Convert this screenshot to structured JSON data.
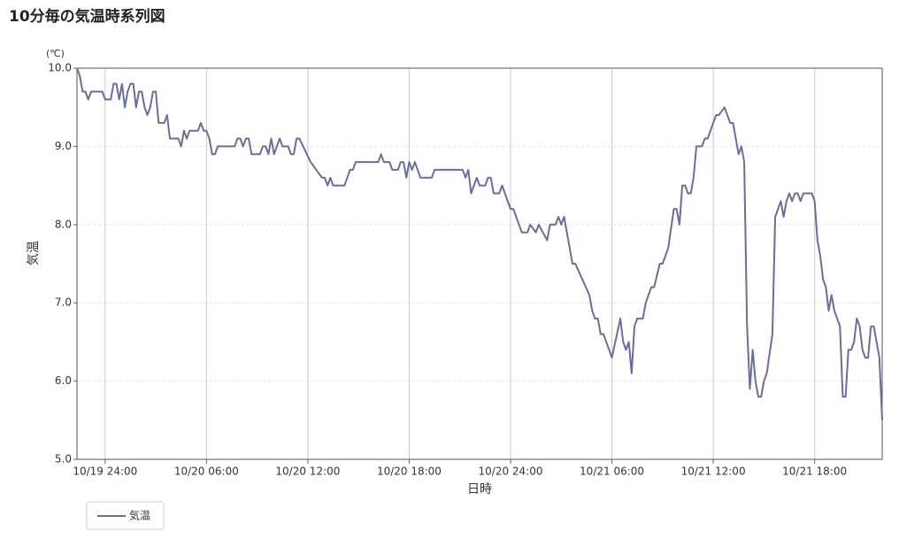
{
  "chart_data": {
    "type": "line",
    "title": "10分毎の気温時系列図",
    "y_unit": "(℃)",
    "y_label": "気温",
    "x_label": "日時",
    "xlim": [
      "10/19 22:20",
      "10/21 22:00"
    ],
    "xticks": [
      {
        "value": "10/20 00:00",
        "label": "10/19 24:00"
      },
      {
        "value": "10/20 06:00",
        "label": "10/20 06:00"
      },
      {
        "value": "10/20 12:00",
        "label": "10/20 12:00"
      },
      {
        "value": "10/20 18:00",
        "label": "10/20 18:00"
      },
      {
        "value": "10/21 00:00",
        "label": "10/20 24:00"
      },
      {
        "value": "10/21 06:00",
        "label": "10/21 06:00"
      },
      {
        "value": "10/21 12:00",
        "label": "10/21 12:00"
      },
      {
        "value": "10/21 18:00",
        "label": "10/21 18:00"
      }
    ],
    "ylim": [
      5,
      10
    ],
    "yticks": [
      {
        "value": 5,
        "label": "5.0"
      },
      {
        "value": 6,
        "label": "6.0"
      },
      {
        "value": 7,
        "label": "7.0"
      },
      {
        "value": 8,
        "label": "8.0"
      },
      {
        "value": 9,
        "label": "9.0"
      },
      {
        "value": 10,
        "label": "10.0"
      }
    ],
    "grid": true,
    "legend": "bottom-left",
    "x": [
      "10/19 22:20",
      "10/19 22:30",
      "10/19 22:40",
      "10/19 22:50",
      "10/19 23:00",
      "10/19 23:10",
      "10/19 23:50",
      "10/20 00:00",
      "10/20 00:20",
      "10/20 00:30",
      "10/20 00:40",
      "10/20 00:50",
      "10/20 01:00",
      "10/20 01:10",
      "10/20 01:20",
      "10/20 01:30",
      "10/20 01:40",
      "10/20 01:50",
      "10/20 02:00",
      "10/20 02:10",
      "10/20 02:20",
      "10/20 02:30",
      "10/20 02:40",
      "10/20 02:50",
      "10/20 03:00",
      "10/20 03:10",
      "10/20 03:30",
      "10/20 03:40",
      "10/20 03:50",
      "10/20 04:20",
      "10/20 04:30",
      "10/20 04:40",
      "10/20 04:50",
      "10/20 05:00",
      "10/20 05:30",
      "10/20 05:40",
      "10/20 05:50",
      "10/20 06:00",
      "10/20 06:10",
      "10/20 06:20",
      "10/20 06:30",
      "10/20 06:40",
      "10/20 07:40",
      "10/20 07:50",
      "10/20 08:00",
      "10/20 08:10",
      "10/20 08:20",
      "10/20 08:30",
      "10/20 08:40",
      "10/20 09:10",
      "10/20 09:20",
      "10/20 09:30",
      "10/20 09:40",
      "10/20 09:50",
      "10/20 10:00",
      "10/20 10:10",
      "10/20 10:20",
      "10/20 10:30",
      "10/20 10:50",
      "10/20 11:00",
      "10/20 11:10",
      "10/20 11:20",
      "10/20 11:30",
      "10/20 12:10",
      "10/20 12:30",
      "10/20 12:50",
      "10/20 13:00",
      "10/20 13:10",
      "10/20 13:20",
      "10/20 13:30",
      "10/20 14:10",
      "10/20 14:30",
      "10/20 14:40",
      "10/20 14:50",
      "10/20 16:10",
      "10/20 16:20",
      "10/20 16:30",
      "10/20 16:50",
      "10/20 17:00",
      "10/20 17:20",
      "10/20 17:30",
      "10/20 17:40",
      "10/20 17:50",
      "10/20 18:00",
      "10/20 18:10",
      "10/20 18:20",
      "10/20 18:30",
      "10/20 18:40",
      "10/20 19:20",
      "10/20 19:30",
      "10/20 21:10",
      "10/20 21:20",
      "10/20 21:30",
      "10/20 21:40",
      "10/20 21:50",
      "10/20 22:00",
      "10/20 22:10",
      "10/20 22:30",
      "10/20 22:40",
      "10/20 22:50",
      "10/20 23:00",
      "10/20 23:20",
      "10/20 23:30",
      "10/21 00:00",
      "10/21 00:10",
      "10/21 00:30",
      "10/21 00:40",
      "10/21 01:00",
      "10/21 01:10",
      "10/21 01:30",
      "10/21 01:40",
      "10/21 02:10",
      "10/21 02:20",
      "10/21 02:40",
      "10/21 02:50",
      "10/21 03:00",
      "10/21 03:10",
      "10/21 03:40",
      "10/21 03:50",
      "10/21 04:40",
      "10/21 04:50",
      "10/21 05:00",
      "10/21 05:10",
      "10/21 05:20",
      "10/21 05:30",
      "10/21 06:00",
      "10/21 06:30",
      "10/21 06:40",
      "10/21 06:50",
      "10/21 07:00",
      "10/21 07:10",
      "10/21 07:20",
      "10/21 07:30",
      "10/21 07:50",
      "10/21 08:00",
      "10/21 08:20",
      "10/21 08:30",
      "10/21 08:50",
      "10/21 09:00",
      "10/21 09:20",
      "10/21 09:40",
      "10/21 09:50",
      "10/21 10:00",
      "10/21 10:10",
      "10/21 10:20",
      "10/21 10:30",
      "10/21 10:40",
      "10/21 10:50",
      "10/21 11:00",
      "10/21 11:20",
      "10/21 11:30",
      "10/21 11:40",
      "10/21 11:50",
      "10/21 12:10",
      "10/21 12:20",
      "10/21 12:40",
      "10/21 12:50",
      "10/21 13:00",
      "10/21 13:10",
      "10/21 13:20",
      "10/21 13:30",
      "10/21 13:40",
      "10/21 13:50",
      "10/21 14:00",
      "10/21 14:10",
      "10/21 14:20",
      "10/21 14:30",
      "10/21 14:40",
      "10/21 14:50",
      "10/21 15:00",
      "10/21 15:10",
      "10/21 15:30",
      "10/21 15:40",
      "10/21 16:00",
      "10/21 16:10",
      "10/21 16:20",
      "10/21 16:30",
      "10/21 16:40",
      "10/21 16:50",
      "10/21 17:00",
      "10/21 17:10",
      "10/21 17:20",
      "10/21 17:50",
      "10/21 18:00",
      "10/21 18:10",
      "10/21 18:20",
      "10/21 18:30",
      "10/21 18:40",
      "10/21 18:50",
      "10/21 19:00",
      "10/21 19:10",
      "10/21 19:30",
      "10/21 19:40",
      "10/21 19:50",
      "10/21 20:00",
      "10/21 20:10",
      "10/21 20:20",
      "10/21 20:30",
      "10/21 20:40",
      "10/21 20:50",
      "10/21 21:00",
      "10/21 21:10",
      "10/21 21:20",
      "10/21 21:30",
      "10/21 21:50",
      "10/21 22:00"
    ],
    "series": [
      {
        "name": "気温",
        "color": "#6a6e9c",
        "values": [
          10.0,
          9.9,
          9.7,
          9.7,
          9.6,
          9.7,
          9.7,
          9.6,
          9.6,
          9.8,
          9.8,
          9.6,
          9.8,
          9.5,
          9.7,
          9.8,
          9.8,
          9.5,
          9.7,
          9.7,
          9.5,
          9.4,
          9.5,
          9.7,
          9.7,
          9.3,
          9.3,
          9.4,
          9.1,
          9.1,
          9.0,
          9.2,
          9.1,
          9.2,
          9.2,
          9.3,
          9.2,
          9.2,
          9.1,
          8.9,
          8.9,
          9.0,
          9.0,
          9.1,
          9.1,
          9.0,
          9.1,
          9.1,
          8.9,
          8.9,
          9.0,
          9.0,
          8.9,
          9.1,
          8.9,
          9.0,
          9.1,
          9.0,
          9.0,
          8.9,
          8.9,
          9.1,
          9.1,
          8.8,
          8.7,
          8.6,
          8.6,
          8.5,
          8.6,
          8.5,
          8.5,
          8.7,
          8.7,
          8.8,
          8.8,
          8.9,
          8.8,
          8.8,
          8.7,
          8.7,
          8.8,
          8.8,
          8.6,
          8.8,
          8.7,
          8.8,
          8.7,
          8.6,
          8.6,
          8.7,
          8.7,
          8.6,
          8.7,
          8.4,
          8.5,
          8.6,
          8.5,
          8.5,
          8.6,
          8.6,
          8.4,
          8.4,
          8.5,
          8.2,
          8.2,
          8.0,
          7.9,
          7.9,
          8.0,
          7.9,
          8.0,
          7.8,
          8.0,
          8.0,
          8.1,
          8.0,
          8.1,
          7.5,
          7.5,
          7.1,
          6.9,
          6.8,
          6.8,
          6.6,
          6.6,
          6.3,
          6.8,
          6.5,
          6.4,
          6.5,
          6.1,
          6.7,
          6.8,
          6.8,
          7.0,
          7.2,
          7.2,
          7.5,
          7.5,
          7.7,
          8.2,
          8.2,
          8.0,
          8.5,
          8.5,
          8.4,
          8.4,
          8.6,
          9.0,
          9.0,
          9.1,
          9.1,
          9.2,
          9.4,
          9.4,
          9.5,
          9.4,
          9.3,
          9.3,
          9.1,
          8.9,
          9.0,
          8.8,
          6.7,
          5.9,
          6.4,
          6.0,
          5.8,
          5.8,
          6.0,
          6.1,
          6.6,
          8.1,
          8.3,
          8.1,
          8.3,
          8.4,
          8.3,
          8.4,
          8.4,
          8.3,
          8.4,
          8.4,
          8.3,
          7.8,
          7.6,
          7.3,
          7.2,
          6.9,
          7.1,
          6.9,
          6.7,
          5.8,
          5.8,
          6.4,
          6.4,
          6.5,
          6.8,
          6.7,
          6.4,
          6.3,
          6.3,
          6.7,
          6.7,
          6.3,
          5.5
        ]
      }
    ]
  }
}
